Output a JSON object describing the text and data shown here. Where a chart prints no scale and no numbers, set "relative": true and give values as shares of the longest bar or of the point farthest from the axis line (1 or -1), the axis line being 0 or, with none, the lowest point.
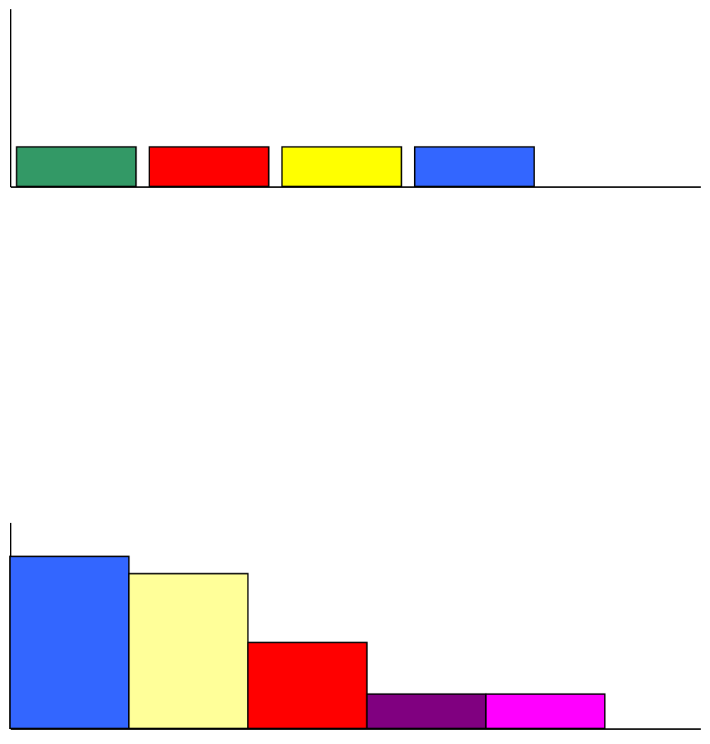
{
  "chart_data": [
    {
      "type": "bar",
      "relative": true,
      "tick_labels": false,
      "grid": false,
      "categories": [
        null,
        null,
        null,
        null
      ],
      "values": [
        1,
        1,
        1,
        1
      ],
      "colors": [
        "#339966",
        "#ff0000",
        "#ffff00",
        "#3366ff"
      ]
    },
    {
      "type": "bar",
      "relative": true,
      "tick_labels": false,
      "grid": false,
      "categories": [
        null,
        null,
        null,
        null,
        null
      ],
      "values": [
        1,
        0.9,
        0.5,
        0.2,
        0.2
      ],
      "colors": [
        "#3366ff",
        "#ffff99",
        "#ff0000",
        "#800080",
        "#ff00ff"
      ]
    }
  ]
}
